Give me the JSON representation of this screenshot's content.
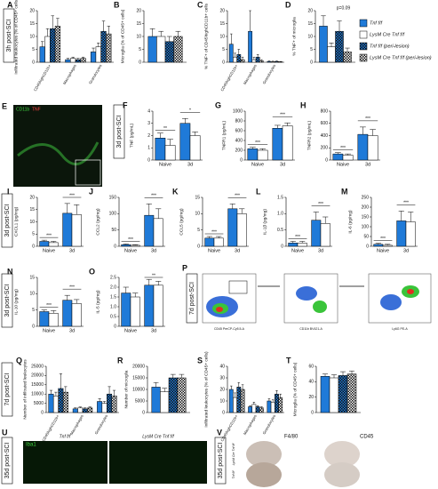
{
  "figure": {
    "legend": [
      {
        "name": "Tnf f/f",
        "color": "#1f7ad8",
        "hatched": false
      },
      {
        "name": "LysM Cre Tnf f/f",
        "color": "#ffffff",
        "hatched": false
      },
      {
        "name": "Tnf f/f (peri-lesion)",
        "color": "#1f7ad8",
        "hatched": true
      },
      {
        "name": "LysM Cre Tnf f/f (peri-lesion)",
        "color": "#ffffff",
        "hatched": true
      }
    ],
    "side_labels": [
      "3h post-SCI",
      "3d post-SCI",
      "3d post-SCI",
      "3d post-SCI",
      "7d post-SCI",
      "7d post-SCI",
      "35d post-SCI",
      "35d post-SCI"
    ],
    "panels": [
      {
        "letter": "A",
        "type": "bar",
        "ylabel": "Infiltrated leukocytes (% of CD45+ cells)",
        "categories": [
          "CD45highCD11b+",
          "Macrophages",
          "Granulocytes"
        ],
        "ylim": [
          0,
          20
        ],
        "yticks": [
          0,
          5,
          10,
          15,
          20
        ],
        "series": [
          {
            "values": [
              6,
              1,
              4
            ],
            "errors": [
              2,
              0.5,
              1.5
            ]
          },
          {
            "values": [
              10,
              1.5,
              6
            ],
            "errors": [
              3,
              0.5,
              1.5
            ]
          },
          {
            "values": [
              13,
              1,
              12
            ],
            "errors": [
              5,
              0.5,
              4
            ]
          },
          {
            "values": [
              14,
              1.5,
              11
            ],
            "errors": [
              3,
              0.5,
              3
            ]
          }
        ]
      },
      {
        "letter": "B",
        "type": "bar",
        "ylabel": "Microglia (% of CD45+ cells)",
        "categories": [
          null
        ],
        "ylim": [
          0,
          20
        ],
        "yticks": [
          0,
          5,
          10,
          15,
          20
        ],
        "series": [
          {
            "values": [
              10
            ],
            "errors": [
              3
            ]
          },
          {
            "values": [
              10
            ],
            "errors": [
              2
            ]
          },
          {
            "values": [
              8
            ],
            "errors": [
              2
            ]
          },
          {
            "values": [
              10
            ],
            "errors": [
              2
            ]
          }
        ]
      },
      {
        "letter": "C",
        "type": "bar",
        "ylabel": "% TNF+ of CD45highCD11b+ cells",
        "categories": [
          "CD45highCD11b+",
          "Macrophages",
          "Granulocytes"
        ],
        "ylim": [
          0,
          20
        ],
        "yticks": [
          0,
          5,
          10,
          15,
          20
        ],
        "series": [
          {
            "values": [
              7,
              12,
              0.3
            ],
            "errors": [
              4,
              8,
              0.2
            ]
          },
          {
            "values": [
              2,
              1,
              0.2
            ],
            "errors": [
              1.5,
              1,
              0.2
            ]
          },
          {
            "values": [
              3,
              2,
              0.3
            ],
            "errors": [
              2,
              1,
              0.2
            ]
          },
          {
            "values": [
              1,
              0.5,
              0.2
            ],
            "errors": [
              1,
              0.5,
              0.1
            ]
          }
        ]
      },
      {
        "letter": "D",
        "type": "bar",
        "ylabel": "% TNF+ of microglia",
        "categories": [
          null
        ],
        "ylim": [
          0,
          20
        ],
        "yticks": [
          0,
          5,
          10,
          15,
          20
        ],
        "annotation": "p=0.09",
        "series": [
          {
            "values": [
              14
            ],
            "errors": [
              4
            ]
          },
          {
            "values": [
              6
            ],
            "errors": [
              1.5
            ]
          },
          {
            "values": [
              12
            ],
            "errors": [
              4
            ]
          },
          {
            "values": [
              4
            ],
            "errors": [
              1.5
            ]
          }
        ]
      },
      {
        "letter": "F",
        "type": "bar",
        "ylabel": "TNF (pg/mL)",
        "categories": [
          "Naive",
          "3d"
        ],
        "ylim": [
          0,
          4
        ],
        "yticks": [
          0,
          1,
          2,
          3,
          4
        ],
        "sig": [
          "**",
          "*"
        ],
        "series": [
          {
            "values": [
              1.8,
              3.0
            ],
            "errors": [
              0.4,
              0.4
            ]
          },
          {
            "values": [
              1.2,
              2.0
            ],
            "errors": [
              0.5,
              0.3
            ]
          }
        ]
      },
      {
        "letter": "G",
        "type": "bar",
        "ylabel": "TNFR1 (pg/mL)",
        "categories": [
          "Naive",
          "3d"
        ],
        "ylim": [
          0,
          1000
        ],
        "yticks": [
          0,
          200,
          400,
          600,
          800,
          1000
        ],
        "sig": [
          "***",
          "***"
        ],
        "series": [
          {
            "values": [
              230,
              650
            ],
            "errors": [
              30,
              60
            ]
          },
          {
            "values": [
              200,
              700
            ],
            "errors": [
              30,
              60
            ]
          }
        ]
      },
      {
        "letter": "H",
        "type": "bar",
        "ylabel": "TNFR2 (pg/mL)",
        "categories": [
          "Naive",
          "3d"
        ],
        "ylim": [
          0,
          800
        ],
        "yticks": [
          0,
          200,
          400,
          600,
          800
        ],
        "sig": [
          "***",
          "***"
        ],
        "series": [
          {
            "values": [
              100,
              420
            ],
            "errors": [
              20,
              120
            ]
          },
          {
            "values": [
              80,
              400
            ],
            "errors": [
              20,
              100
            ]
          }
        ]
      },
      {
        "letter": "I",
        "type": "bar",
        "ylabel": "CXCL1 (pg/mg)",
        "categories": [
          "Naive",
          "3d"
        ],
        "ylim": [
          0,
          20
        ],
        "yticks": [
          0,
          5,
          10,
          15,
          20
        ],
        "sig": [
          "***",
          "***"
        ],
        "series": [
          {
            "values": [
              2,
              13.5
            ],
            "errors": [
              0.5,
              4
            ]
          },
          {
            "values": [
              1.5,
              13
            ],
            "errors": [
              0.5,
              4
            ]
          }
        ]
      },
      {
        "letter": "J",
        "type": "bar",
        "ylabel": "CCL2 (pg/mg)",
        "categories": [
          "Naive",
          "3d"
        ],
        "ylim": [
          0,
          150
        ],
        "yticks": [
          0,
          50,
          100,
          150
        ],
        "sig": [
          "***",
          "***"
        ],
        "series": [
          {
            "values": [
              5,
              95
            ],
            "errors": [
              2,
              35
            ]
          },
          {
            "values": [
              3,
              85
            ],
            "errors": [
              2,
              30
            ]
          }
        ]
      },
      {
        "letter": "K",
        "type": "bar",
        "ylabel": "CCL5 (pg/mg)",
        "categories": [
          "Naive",
          "3d"
        ],
        "ylim": [
          0,
          15
        ],
        "yticks": [
          0,
          5,
          10,
          15
        ],
        "sig": [
          "***",
          "***"
        ],
        "series": [
          {
            "values": [
              2.5,
              11.5
            ],
            "errors": [
              0.5,
              1.5
            ]
          },
          {
            "values": [
              2.5,
              10
            ],
            "errors": [
              0.5,
              1.5
            ]
          }
        ]
      },
      {
        "letter": "L",
        "type": "bar",
        "ylabel": "IL-1β (pg/mg)",
        "categories": [
          "Naive",
          "3d"
        ],
        "ylim": [
          0,
          1.5
        ],
        "yticks": [
          0,
          0.5,
          {
            "value": 1,
            "label": "1.0"
          },
          1.5
        ],
        "sig": [
          "***",
          "***"
        ],
        "series": [
          {
            "values": [
              0.1,
              0.8
            ],
            "errors": [
              0.05,
              0.25
            ]
          },
          {
            "values": [
              0.1,
              0.7
            ],
            "errors": [
              0.05,
              0.2
            ]
          }
        ]
      },
      {
        "letter": "M",
        "type": "bar",
        "ylabel": "IL-6 (pg/mg)",
        "categories": [
          "Naive",
          "3d"
        ],
        "ylim": [
          0,
          250
        ],
        "yticks": [
          0,
          50,
          100,
          150,
          200,
          250
        ],
        "sig": [
          "***",
          "***"
        ],
        "series": [
          {
            "values": [
              10,
              130
            ],
            "errors": [
              5,
              50
            ]
          },
          {
            "values": [
              5,
              125
            ],
            "errors": [
              5,
              50
            ]
          }
        ]
      },
      {
        "letter": "N",
        "type": "bar",
        "ylabel": "IL-10 (pg/mg)",
        "categories": [
          "Naive",
          "3d"
        ],
        "ylim": [
          0,
          15
        ],
        "yticks": [
          0,
          5,
          10,
          15
        ],
        "sig": [
          "***",
          "***"
        ],
        "series": [
          {
            "values": [
              4.5,
              8
            ],
            "errors": [
              0.5,
              1.5
            ]
          },
          {
            "values": [
              4,
              7
            ],
            "errors": [
              0.8,
              1.2
            ]
          }
        ]
      },
      {
        "letter": "O",
        "type": "bar",
        "ylabel": "IL-5 (pg/mg)",
        "categories": [
          "Naive",
          "3d"
        ],
        "ylim": [
          0,
          2.5
        ],
        "yticks": [
          0,
          0.5,
          {
            "value": 1,
            "label": "1.0"
          },
          1.5,
          {
            "value": 2,
            "label": "2.0"
          },
          2.5
        ],
        "sig": [
          "",
          "**"
        ],
        "series": [
          {
            "values": [
              1.7,
              2.1
            ],
            "errors": [
              0.3,
              0.3
            ]
          },
          {
            "values": [
              1.5,
              2.1
            ],
            "errors": [
              0.2,
              0.2
            ]
          }
        ]
      },
      {
        "letter": "Q",
        "type": "bar",
        "ylabel": "Number of infiltrated leukocytes",
        "categories": [
          "CD45highCD11b+",
          "Macrophages",
          "Granulocytes"
        ],
        "ylim": [
          0,
          25000
        ],
        "yticks": [
          0,
          5000,
          10000,
          15000,
          20000,
          25000
        ],
        "series": [
          {
            "values": [
              10000,
              2000,
              6000
            ],
            "errors": [
              2000,
              500,
              1500
            ]
          },
          {
            "values": [
              9000,
              2500,
              5000
            ],
            "errors": [
              2000,
              500,
              1000
            ]
          },
          {
            "values": [
              13000,
              2000,
              10000
            ],
            "errors": [
              8000,
              500,
              4000
            ]
          },
          {
            "values": [
              11000,
              2500,
              9000
            ],
            "errors": [
              3000,
              500,
              3000
            ]
          }
        ]
      },
      {
        "letter": "R",
        "type": "bar",
        "ylabel": "Number of microglia",
        "categories": [
          null
        ],
        "ylim": [
          0,
          20000
        ],
        "yticks": [
          0,
          5000,
          10000,
          15000,
          20000
        ],
        "series": [
          {
            "values": [
              11000
            ],
            "errors": [
              2000
            ]
          },
          {
            "values": [
              9000
            ],
            "errors": [
              1500
            ]
          },
          {
            "values": [
              15000
            ],
            "errors": [
              1500
            ]
          },
          {
            "values": [
              15000
            ],
            "errors": [
              1500
            ]
          }
        ]
      },
      {
        "letter": "S",
        "type": "bar",
        "ylabel": "Infiltrated leukocytes (% of CD45+ cells)",
        "categories": [
          "CD45highCD11b+",
          "Macrophages",
          "Granulocytes"
        ],
        "ylim": [
          0,
          40
        ],
        "yticks": [
          0,
          10,
          20,
          30,
          40
        ],
        "series": [
          {
            "values": [
              20,
              5,
              10
            ],
            "errors": [
              3,
              1,
              2
            ]
          },
          {
            "values": [
              13,
              7,
              9
            ],
            "errors": [
              4,
              2,
              2
            ]
          },
          {
            "values": [
              22,
              5,
              16
            ],
            "errors": [
              4,
              1,
              3
            ]
          },
          {
            "values": [
              20,
              4,
              13
            ],
            "errors": [
              4,
              1,
              3
            ]
          }
        ]
      },
      {
        "letter": "T",
        "type": "bar",
        "ylabel": "Microglia (% of CD45+ cells)",
        "categories": [
          null
        ],
        "ylim": [
          0,
          60
        ],
        "yticks": [
          0,
          20,
          40,
          60
        ],
        "series": [
          {
            "values": [
              47
            ],
            "errors": [
              3
            ]
          },
          {
            "values": [
              45
            ],
            "errors": [
              4
            ]
          },
          {
            "values": [
              48
            ],
            "errors": [
              5
            ]
          },
          {
            "values": [
              50
            ],
            "errors": [
              4
            ]
          }
        ]
      }
    ],
    "images": {
      "E": {
        "letter": "E",
        "labels": [
          "CD11b",
          "TNF"
        ]
      },
      "P": {
        "letter": "P",
        "labels": [
          "CD45 PerCP-Cy5.5-A",
          "CD11b BV421-A",
          "Ly6G PE-A"
        ]
      },
      "U": {
        "letter": "U",
        "labels": [
          "Iba1",
          "Tnf f/f",
          "LysM Cre Tnf f/f"
        ]
      },
      "V": {
        "letter": "V",
        "labels": [
          "F4/80",
          "CD45",
          "LysM Cre Tnf f/f",
          "Tnf f/f"
        ]
      }
    }
  }
}
